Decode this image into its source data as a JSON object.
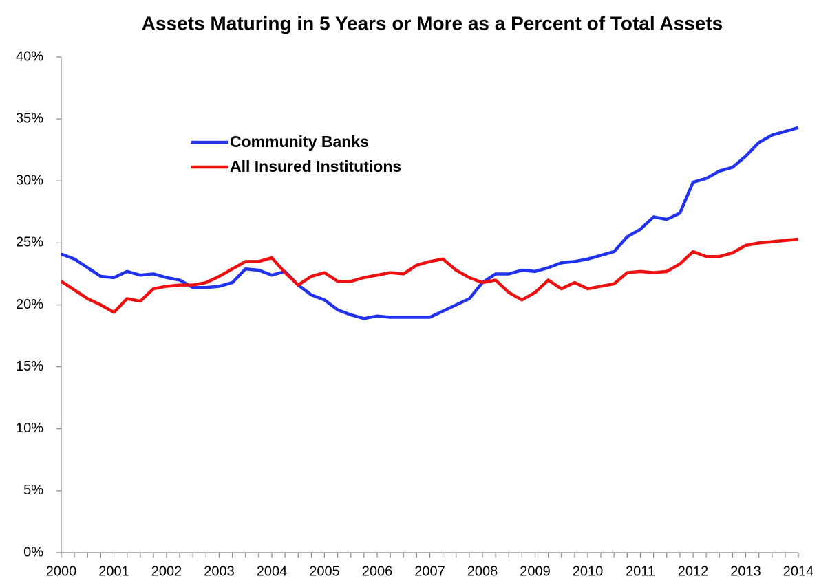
{
  "chart_data": {
    "type": "line",
    "title": "Assets Maturing in 5 Years or More as a Percent of Total Assets",
    "categories": [
      "2000",
      null,
      null,
      null,
      "2001",
      null,
      null,
      null,
      "2002",
      null,
      null,
      null,
      "2003",
      null,
      null,
      null,
      "2004",
      null,
      null,
      null,
      "2005",
      null,
      null,
      null,
      "2006",
      null,
      null,
      null,
      "2007",
      null,
      null,
      null,
      "2008",
      null,
      null,
      null,
      "2009",
      null,
      null,
      null,
      "2010",
      null,
      null,
      null,
      "2011",
      null,
      null,
      null,
      "2012",
      null,
      null,
      null,
      "2013",
      null,
      null,
      null,
      "2014"
    ],
    "series": [
      {
        "name": "Community Banks",
        "color": "#2233ee",
        "values": [
          24.1,
          23.7,
          23.0,
          22.3,
          22.2,
          22.7,
          22.4,
          22.5,
          22.2,
          22.0,
          21.4,
          21.4,
          21.5,
          21.8,
          22.9,
          22.8,
          22.4,
          22.7,
          21.6,
          20.8,
          20.4,
          19.6,
          19.2,
          18.9,
          19.1,
          19.0,
          19.0,
          19.0,
          19.0,
          19.5,
          20.0,
          20.5,
          21.8,
          22.5,
          22.5,
          22.8,
          22.7,
          23.0,
          23.4,
          23.5,
          23.7,
          24.0,
          24.3,
          25.5,
          26.1,
          27.1,
          26.9,
          27.4,
          29.9,
          30.2,
          30.8,
          31.1,
          32.0,
          33.1,
          33.7,
          34.0,
          34.3
        ]
      },
      {
        "name": "All Insured Institutions",
        "color": "#ee1111",
        "values": [
          21.9,
          21.2,
          20.5,
          20.0,
          19.4,
          20.5,
          20.3,
          21.3,
          21.5,
          21.6,
          21.6,
          21.8,
          22.3,
          22.9,
          23.5,
          23.5,
          23.8,
          22.6,
          21.6,
          22.3,
          22.6,
          21.9,
          21.9,
          22.2,
          22.4,
          22.6,
          22.5,
          23.2,
          23.5,
          23.7,
          22.8,
          22.2,
          21.8,
          22.0,
          21.0,
          20.4,
          21.0,
          22.0,
          21.3,
          21.8,
          21.3,
          21.5,
          21.7,
          22.6,
          22.7,
          22.6,
          22.7,
          23.3,
          24.3,
          23.9,
          23.9,
          24.2,
          24.8,
          25.0,
          25.1,
          25.2,
          25.3
        ]
      }
    ],
    "ylim": [
      0,
      40
    ],
    "yticks": [
      {
        "value": 0,
        "label": "0%"
      },
      {
        "value": 5,
        "label": "5%"
      },
      {
        "value": 10,
        "label": "10%"
      },
      {
        "value": 15,
        "label": "15%"
      },
      {
        "value": 20,
        "label": "20%"
      },
      {
        "value": 25,
        "label": "25%"
      },
      {
        "value": 30,
        "label": "30%"
      },
      {
        "value": 35,
        "label": "35%"
      },
      {
        "value": 40,
        "label": "40%"
      }
    ],
    "grid": false
  }
}
